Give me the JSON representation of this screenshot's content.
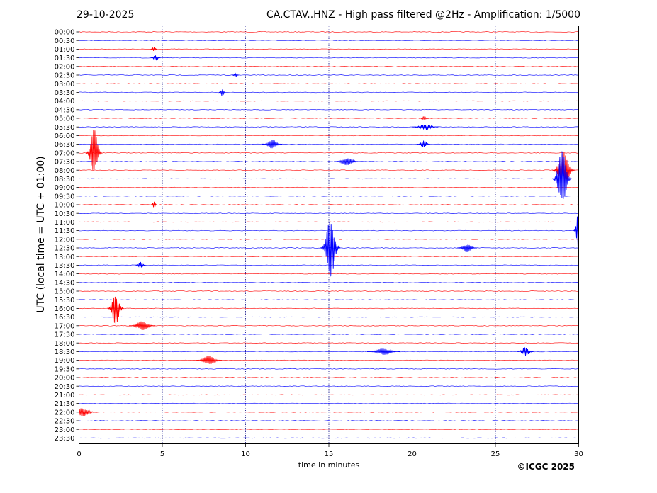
{
  "header": {
    "date": "29-10-2025",
    "title": "CA.CTAV..HNZ - High pass filtered @2Hz - Amplification: 1/5000"
  },
  "footer": {
    "copyright": "©ICGC 2025"
  },
  "colors": {
    "odd_trace": "#ff0000",
    "even_trace": "#0000ff",
    "axis": "#000000",
    "grid": "#000080"
  },
  "chart_data": {
    "type": "line",
    "title": "CA.CTAV..HNZ - High pass filtered @2Hz - Amplification: 1/5000",
    "xlabel": "time in minutes",
    "ylabel": "UTC (local time = UTC + 01:00)",
    "xlim": [
      0,
      30
    ],
    "x_ticks": [
      0,
      5,
      10,
      15,
      20,
      25,
      30
    ],
    "vertical_grid": "dotted",
    "row_labels": [
      "00:00",
      "00:30",
      "01:00",
      "01:30",
      "02:00",
      "02:30",
      "03:00",
      "03:30",
      "04:00",
      "04:30",
      "05:00",
      "05:30",
      "06:00",
      "06:30",
      "07:00",
      "07:30",
      "08:00",
      "08:30",
      "09:00",
      "09:30",
      "10:00",
      "10:30",
      "11:00",
      "11:30",
      "12:00",
      "12:30",
      "13:00",
      "13:30",
      "14:00",
      "14:30",
      "15:00",
      "15:30",
      "16:00",
      "16:30",
      "17:00",
      "17:30",
      "18:00",
      "18:30",
      "19:00",
      "19:30",
      "20:00",
      "20:30",
      "21:00",
      "21:30",
      "22:00",
      "22:30",
      "23:00",
      "23:30"
    ],
    "trace_colors": [
      "#ff0000",
      "#0000ff"
    ],
    "events": [
      {
        "row": 2,
        "minute": 4.5,
        "amp": 0.5,
        "len": 0.2
      },
      {
        "row": 3,
        "minute": 4.6,
        "amp": 0.6,
        "len": 0.3
      },
      {
        "row": 5,
        "minute": 9.4,
        "amp": 0.4,
        "len": 0.2
      },
      {
        "row": 7,
        "minute": 8.6,
        "amp": 0.8,
        "len": 0.2
      },
      {
        "row": 10,
        "minute": 20.7,
        "amp": 0.4,
        "len": 0.3
      },
      {
        "row": 11,
        "minute": 20.8,
        "amp": 0.6,
        "len": 0.8
      },
      {
        "row": 13,
        "minute": 11.6,
        "amp": 1.0,
        "len": 0.6
      },
      {
        "row": 13,
        "minute": 20.7,
        "amp": 0.8,
        "len": 0.4
      },
      {
        "row": 14,
        "minute": 0.9,
        "amp": 5.0,
        "len": 0.5
      },
      {
        "row": 15,
        "minute": 16.1,
        "amp": 0.8,
        "len": 0.8
      },
      {
        "row": 16,
        "minute": 29.1,
        "amp": 4.0,
        "len": 0.7
      },
      {
        "row": 17,
        "minute": 29.0,
        "amp": 6.0,
        "len": 0.6
      },
      {
        "row": 20,
        "minute": 4.5,
        "amp": 0.7,
        "len": 0.2
      },
      {
        "row": 23,
        "minute": 30.0,
        "amp": 5.0,
        "len": 0.3
      },
      {
        "row": 25,
        "minute": 15.1,
        "amp": 6.5,
        "len": 0.6
      },
      {
        "row": 25,
        "minute": 23.3,
        "amp": 0.9,
        "len": 0.6
      },
      {
        "row": 27,
        "minute": 3.7,
        "amp": 0.7,
        "len": 0.3
      },
      {
        "row": 32,
        "minute": 2.2,
        "amp": 3.5,
        "len": 0.5
      },
      {
        "row": 34,
        "minute": 3.8,
        "amp": 1.0,
        "len": 0.8
      },
      {
        "row": 37,
        "minute": 18.3,
        "amp": 0.7,
        "len": 1.0
      },
      {
        "row": 37,
        "minute": 26.8,
        "amp": 1.0,
        "len": 0.5
      },
      {
        "row": 38,
        "minute": 7.8,
        "amp": 1.0,
        "len": 0.8
      },
      {
        "row": 44,
        "minute": 0.2,
        "amp": 0.9,
        "len": 0.9
      }
    ]
  }
}
